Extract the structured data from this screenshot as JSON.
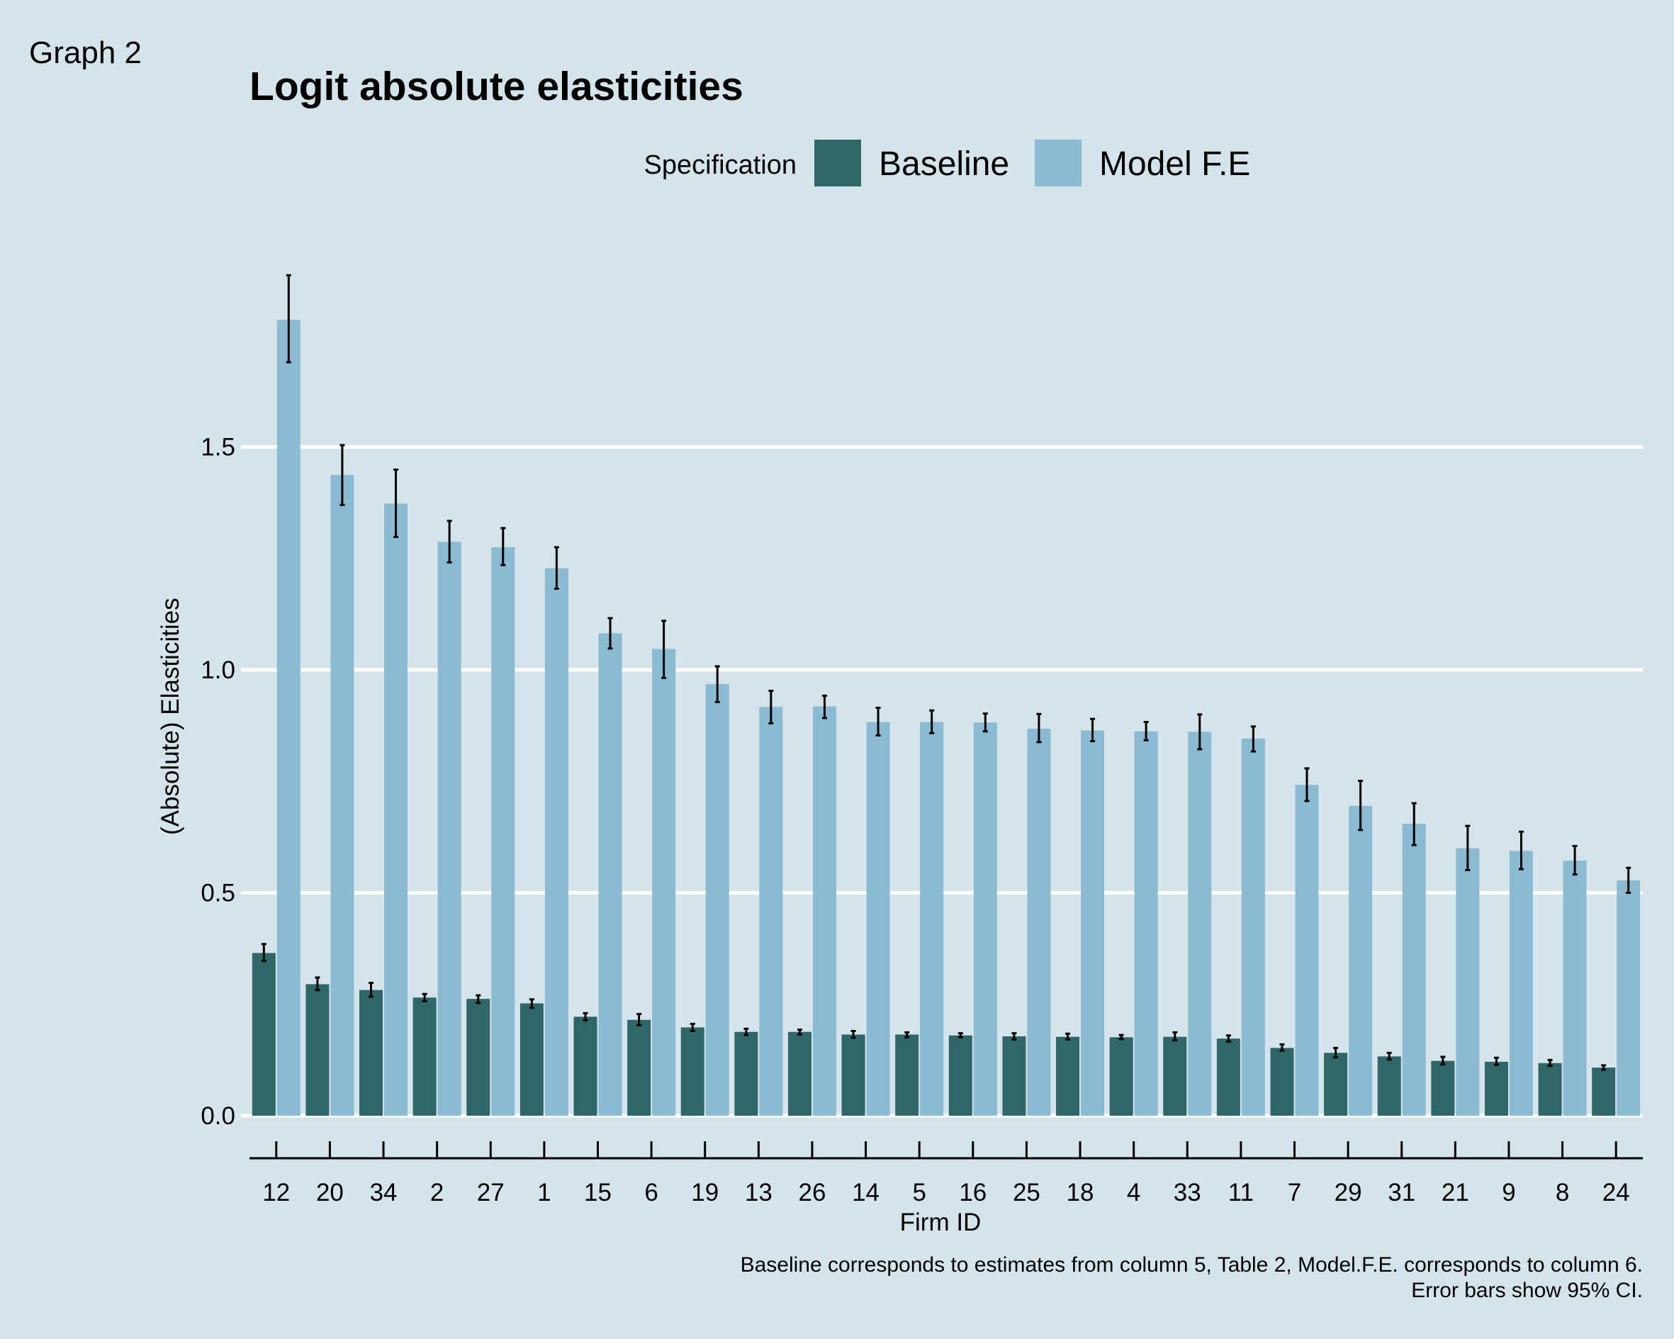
{
  "figure_tag": "Graph 2",
  "chart_data": {
    "type": "bar",
    "title": "Logit absolute elasticities",
    "xlabel": "Firm ID",
    "ylabel": "(Absolute) Elasticities",
    "ylim": [
      -0.08,
      2.02
    ],
    "yticks": [
      0.0,
      0.5,
      1.0,
      1.5
    ],
    "ytick_labels": [
      "0.0",
      "0.5",
      "1.0",
      "1.5"
    ],
    "grid": "horizontal major lines",
    "legend_title": "Specification",
    "legend_position": "top",
    "categories": [
      "12",
      "20",
      "34",
      "2",
      "27",
      "1",
      "15",
      "6",
      "19",
      "13",
      "26",
      "14",
      "5",
      "16",
      "25",
      "18",
      "4",
      "33",
      "11",
      "7",
      "29",
      "31",
      "21",
      "9",
      "8",
      "24"
    ],
    "series": [
      {
        "name": "Baseline",
        "color": "#2f6668",
        "values": [
          0.365,
          0.295,
          0.282,
          0.265,
          0.262,
          0.252,
          0.222,
          0.215,
          0.198,
          0.188,
          0.188,
          0.182,
          0.182,
          0.18,
          0.178,
          0.177,
          0.176,
          0.177,
          0.173,
          0.152,
          0.141,
          0.133,
          0.123,
          0.121,
          0.118,
          0.108
        ],
        "error_low": [
          0.347,
          0.282,
          0.267,
          0.257,
          0.253,
          0.242,
          0.214,
          0.203,
          0.19,
          0.181,
          0.182,
          0.175,
          0.176,
          0.176,
          0.171,
          0.171,
          0.172,
          0.169,
          0.166,
          0.146,
          0.131,
          0.126,
          0.115,
          0.114,
          0.112,
          0.103
        ],
        "error_high": [
          0.385,
          0.31,
          0.298,
          0.273,
          0.27,
          0.261,
          0.23,
          0.228,
          0.206,
          0.195,
          0.193,
          0.19,
          0.187,
          0.185,
          0.185,
          0.184,
          0.181,
          0.187,
          0.18,
          0.16,
          0.152,
          0.141,
          0.132,
          0.13,
          0.125,
          0.113
        ]
      },
      {
        "name": "Model F.E",
        "color": "#8bbbd2",
        "values": [
          1.785,
          1.437,
          1.373,
          1.287,
          1.275,
          1.228,
          1.082,
          1.047,
          0.968,
          0.917,
          0.918,
          0.883,
          0.883,
          0.882,
          0.868,
          0.864,
          0.862,
          0.861,
          0.846,
          0.742,
          0.695,
          0.655,
          0.6,
          0.594,
          0.572,
          0.528
        ],
        "error_low": [
          1.69,
          1.37,
          1.298,
          1.241,
          1.235,
          1.182,
          1.048,
          0.982,
          0.928,
          0.88,
          0.892,
          0.853,
          0.858,
          0.862,
          0.838,
          0.84,
          0.842,
          0.822,
          0.817,
          0.706,
          0.641,
          0.607,
          0.551,
          0.553,
          0.541,
          0.5
        ],
        "error_high": [
          1.885,
          1.504,
          1.449,
          1.334,
          1.318,
          1.275,
          1.116,
          1.11,
          1.008,
          0.953,
          0.942,
          0.915,
          0.909,
          0.902,
          0.901,
          0.89,
          0.883,
          0.9,
          0.873,
          0.779,
          0.751,
          0.701,
          0.65,
          0.637,
          0.605,
          0.556
        ]
      }
    ],
    "caption_lines": [
      "Baseline corresponds to estimates from column 5, Table 2, Model.F.E. corresponds to column 6.",
      "Error bars show 95% CI."
    ]
  }
}
